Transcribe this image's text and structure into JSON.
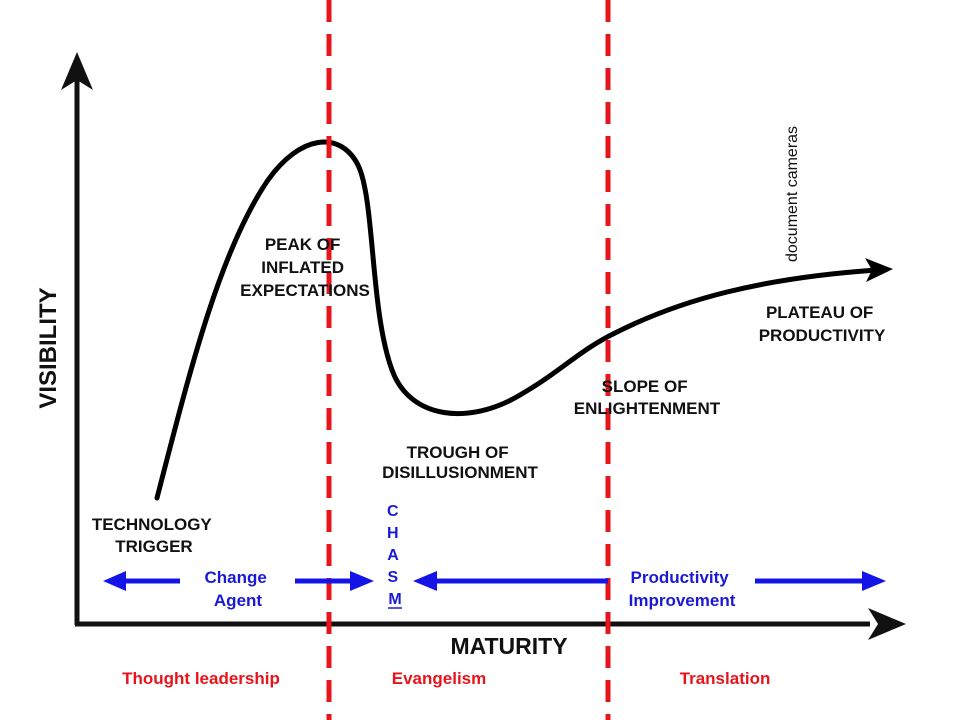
{
  "axes": {
    "y_label": "VISIBILITY",
    "x_label": "MATURITY"
  },
  "stages": {
    "peak": [
      "PEAK OF",
      "INFLATED",
      "EXPECTATIONS"
    ],
    "trough": [
      "TROUGH OF",
      "DISILLUSIONMENT"
    ],
    "slope": [
      "SLOPE OF",
      "ENLIGHTENMENT"
    ],
    "plateau": [
      "PLATEAU OF",
      "PRODUCTIVITY"
    ],
    "trigger": [
      "TECHNOLOGY",
      "TRIGGER"
    ]
  },
  "annotation": "document cameras",
  "chasm_letters": [
    "C",
    "H",
    "A",
    "S",
    "M"
  ],
  "change_agent": [
    "Change",
    "Agent"
  ],
  "productivity_improvement": [
    "Productivity",
    "Improvement"
  ],
  "phases": {
    "left": "Thought leadership",
    "middle": "Evangelism",
    "right": "Translation"
  },
  "colors": {
    "curve": "#000000",
    "divider": "#e8141b",
    "arrow_blue": "#1414e6",
    "phase_text": "#e8141b",
    "label_blue": "#1a1ad6"
  }
}
